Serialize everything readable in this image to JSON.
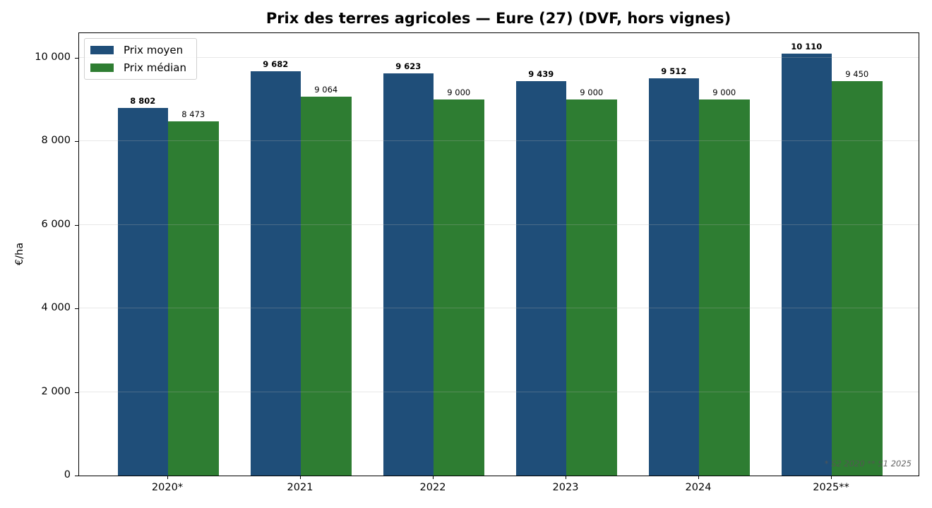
{
  "chart": {
    "title": "Prix des terres agricoles — Eure (27) (DVF, hors vignes)",
    "ylabel": "€/ha",
    "yticks": [
      "0",
      "2 000",
      "4 000",
      "6 000",
      "8 000",
      "10 000"
    ],
    "xticks": [
      "2020*",
      "2021",
      "2022",
      "2023",
      "2024",
      "2025**"
    ],
    "legend": [
      "Prix moyen",
      "Prix médian"
    ],
    "footnote": "* S2 2020   ** S1 2025",
    "labels_mean": [
      "8 802",
      "9 682",
      "9 623",
      "9 439",
      "9 512",
      "10 110"
    ],
    "labels_median": [
      "8 473",
      "9 064",
      "9 000",
      "9 000",
      "9 000",
      "9 450"
    ],
    "colors": {
      "mean": "#1f4e79",
      "median": "#2e7d32"
    }
  },
  "chart_data": {
    "type": "bar",
    "title": "Prix des terres agricoles — Eure (27) (DVF, hors vignes)",
    "xlabel": "",
    "ylabel": "€/ha",
    "categories": [
      "2020*",
      "2021",
      "2022",
      "2023",
      "2024",
      "2025**"
    ],
    "series": [
      {
        "name": "Prix moyen",
        "color": "#1f4e79",
        "values": [
          8802,
          9682,
          9623,
          9439,
          9512,
          10110
        ]
      },
      {
        "name": "Prix médian",
        "color": "#2e7d32",
        "values": [
          8473,
          9064,
          9000,
          9000,
          9000,
          9450
        ]
      }
    ],
    "ylim": [
      0,
      10600
    ],
    "yticks": [
      0,
      2000,
      4000,
      6000,
      8000,
      10000
    ],
    "grid": "y",
    "legend_position": "upper left",
    "annotations": [
      "* S2 2020   ** S1 2025"
    ]
  }
}
